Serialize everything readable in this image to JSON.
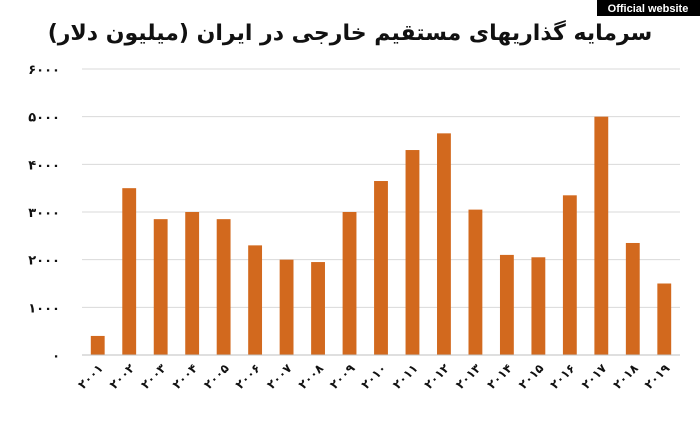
{
  "badge": {
    "label": "Official website"
  },
  "chart_data": {
    "type": "bar",
    "title": "سرمایه گذاریهای مستقیم خارجی در ایران (میلیون دلار)",
    "xlabel": "",
    "ylabel": "",
    "ylim": [
      0,
      6000
    ],
    "yticks": [
      {
        "value": 0,
        "label": "۰"
      },
      {
        "value": 1000,
        "label": "۱۰۰۰"
      },
      {
        "value": 2000,
        "label": "۲۰۰۰"
      },
      {
        "value": 3000,
        "label": "۳۰۰۰"
      },
      {
        "value": 4000,
        "label": "۴۰۰۰"
      },
      {
        "value": 5000,
        "label": "۵۰۰۰"
      },
      {
        "value": 6000,
        "label": "۶۰۰۰"
      }
    ],
    "categories": [
      "۲۰۰۱",
      "۲۰۰۲",
      "۲۰۰۳",
      "۲۰۰۴",
      "۲۰۰۵",
      "۲۰۰۶",
      "۲۰۰۷",
      "۲۰۰۸",
      "۲۰۰۹",
      "۲۰۱۰",
      "۲۰۱۱",
      "۲۰۱۲",
      "۲۰۱۳",
      "۲۰۱۴",
      "۲۰۱۵",
      "۲۰۱۶",
      "۲۰۱۷",
      "۲۰۱۸",
      "۲۰۱۹"
    ],
    "values": [
      400,
      3500,
      2850,
      3000,
      2850,
      2300,
      2000,
      1950,
      3000,
      3650,
      4300,
      4650,
      3050,
      2100,
      2050,
      3350,
      5000,
      2350,
      1500
    ],
    "grid": true,
    "color": "#d2691e"
  }
}
